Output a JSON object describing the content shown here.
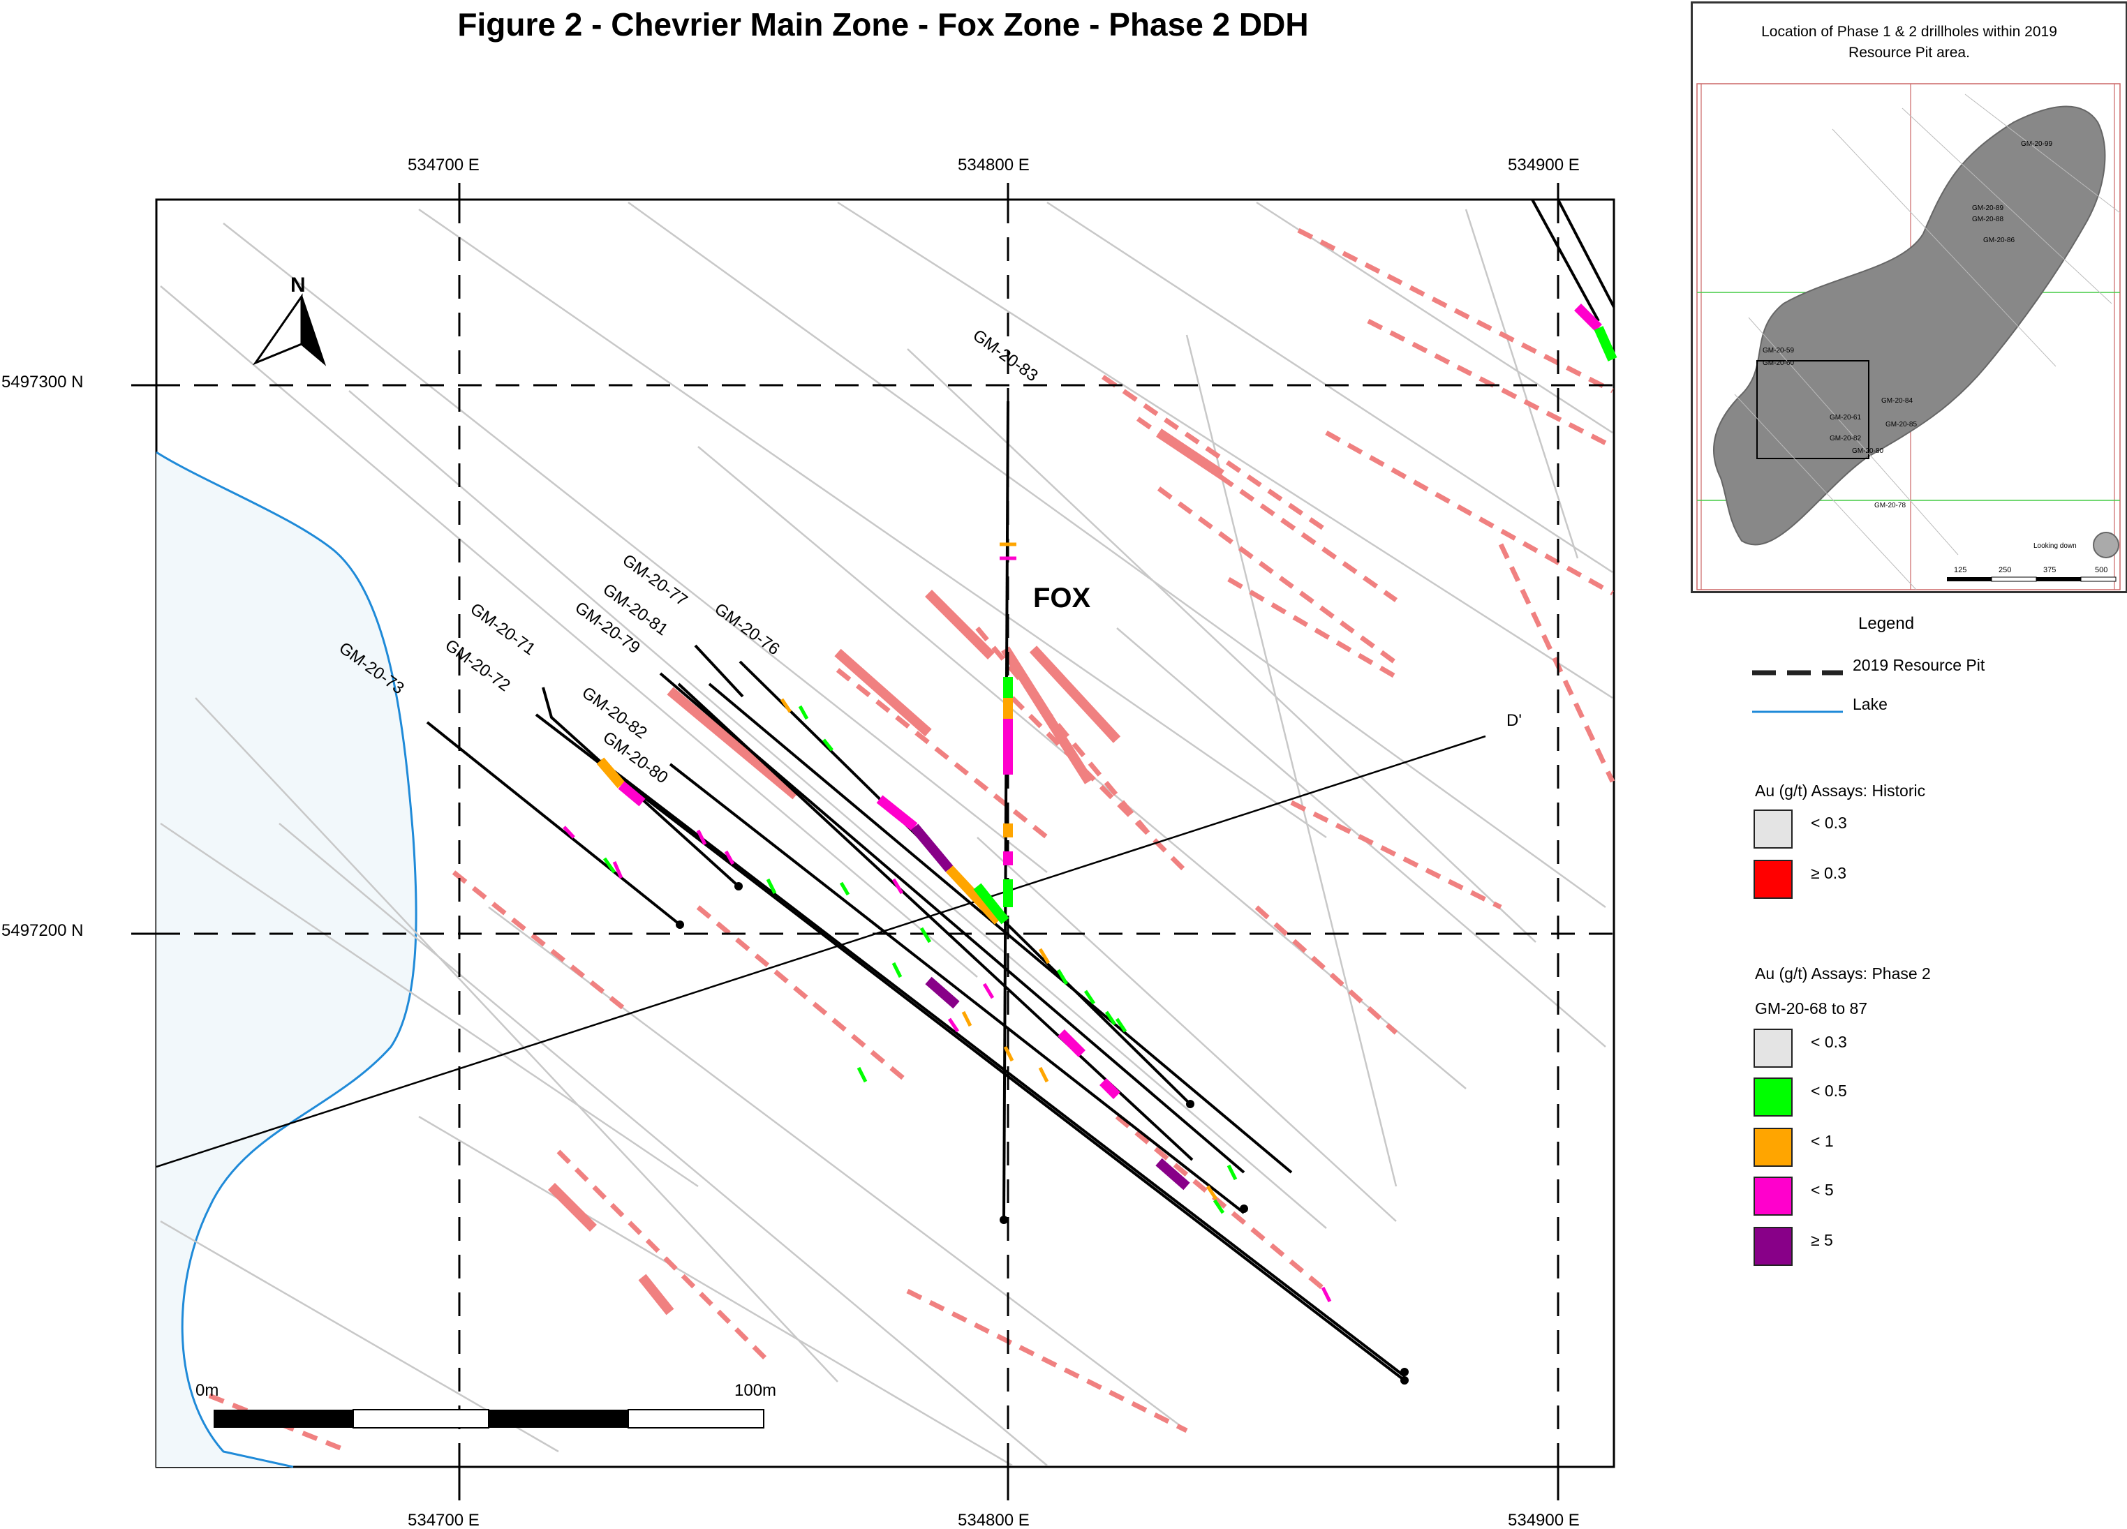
{
  "title": "Figure 2 - Chevrier Main Zone - Fox Zone - Phase 2 DDH",
  "map": {
    "easting_labels": [
      "534700 E",
      "534800 E",
      "534900 E"
    ],
    "northing_labels": [
      "5497300 N",
      "5497200 N"
    ],
    "north_label": "N",
    "zone_label": "FOX",
    "section_label": "D'",
    "scale_start": "0m",
    "scale_end": "100m",
    "drillholes": [
      "GM-20-83",
      "GM-20-77",
      "GM-20-81",
      "GM-20-79",
      "GM-20-76",
      "GM-20-71",
      "GM-20-72",
      "GM-20-73",
      "GM-20-82",
      "GM-20-80"
    ]
  },
  "inset": {
    "title_line1": "Location of Phase 1 & 2 drillholes within 2019",
    "title_line2": "Resource Pit area.",
    "holes": [
      "GM-20-59",
      "GM-20-60",
      "GM-20-84",
      "GM-20-85",
      "GM-20-61",
      "GM-20-78",
      "GM-20-80",
      "GM-20-82",
      "GM-20-86",
      "GM-20-88",
      "GM-20-89",
      "GM-20-99"
    ],
    "scale_ticks": [
      "125",
      "250",
      "375",
      "500"
    ],
    "view_label": "Looking down"
  },
  "legend": {
    "title": "Legend",
    "pit": "2019 Resource Pit",
    "lake": "Lake",
    "historic_title": "Au (g/t) Assays: Historic",
    "historic": [
      {
        "label": "< 0.3",
        "color": "#e4e4e4"
      },
      {
        "label": "≥ 0.3",
        "color": "#ff0000"
      }
    ],
    "phase2_title": "Au (g/t) Assays: Phase 2",
    "phase2_subtitle": "GM-20-68 to 87",
    "phase2": [
      {
        "label": "< 0.3",
        "color": "#e4e4e4"
      },
      {
        "label": "< 0.5",
        "color": "#00ff00"
      },
      {
        "label": "< 1",
        "color": "#ffa500"
      },
      {
        "label": "< 5",
        "color": "#ff00cc"
      },
      {
        "label": "≥ 5",
        "color": "#880088"
      }
    ]
  },
  "colors": {
    "lake_fill": "#f2f8fb",
    "lake_line": "#1f8ad8",
    "historic_trace": "#f08080",
    "gray_trace": "#c8c8c8"
  }
}
